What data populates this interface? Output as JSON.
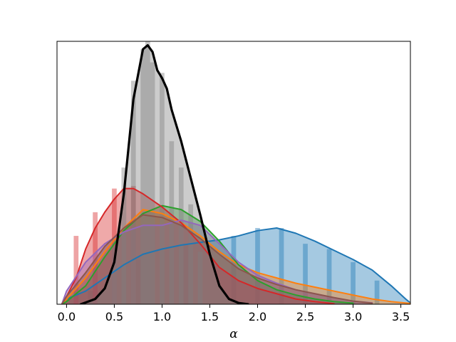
{
  "chart_data": {
    "type": "area",
    "title": "",
    "xlabel": "α",
    "ylabel": "",
    "xlim": [
      -0.1,
      3.6
    ],
    "ylim": [
      0,
      1.0
    ],
    "xticks": [
      "0.0",
      "0.5",
      "1.0",
      "1.5",
      "2.0",
      "2.5",
      "3.0",
      "3.5"
    ],
    "yticks_visible": false,
    "grid": false,
    "legend": "none",
    "series": [
      {
        "color": "#1f77b4",
        "kde": [
          [
            -0.05,
            0.0
          ],
          [
            0.0,
            0.02
          ],
          [
            0.2,
            0.05
          ],
          [
            0.4,
            0.1
          ],
          [
            0.6,
            0.15
          ],
          [
            0.8,
            0.19
          ],
          [
            1.0,
            0.21
          ],
          [
            1.2,
            0.225
          ],
          [
            1.4,
            0.235
          ],
          [
            1.6,
            0.245
          ],
          [
            1.8,
            0.26
          ],
          [
            2.0,
            0.28
          ],
          [
            2.2,
            0.29
          ],
          [
            2.4,
            0.27
          ],
          [
            2.6,
            0.24
          ],
          [
            2.8,
            0.205
          ],
          [
            3.0,
            0.17
          ],
          [
            3.2,
            0.13
          ],
          [
            3.4,
            0.07
          ],
          [
            3.55,
            0.02
          ],
          [
            3.6,
            0.005
          ]
        ],
        "hist": [
          [
            0.25,
            0.05
          ],
          [
            0.75,
            0.17
          ],
          [
            1.25,
            0.23
          ],
          [
            1.75,
            0.26
          ],
          [
            2.0,
            0.29
          ],
          [
            2.25,
            0.29
          ],
          [
            2.5,
            0.23
          ],
          [
            2.75,
            0.21
          ],
          [
            3.0,
            0.16
          ],
          [
            3.25,
            0.09
          ]
        ]
      },
      {
        "color": "#ff7f0e",
        "kde": [
          [
            -0.05,
            0.0
          ],
          [
            0.0,
            0.02
          ],
          [
            0.2,
            0.1
          ],
          [
            0.4,
            0.2
          ],
          [
            0.6,
            0.29
          ],
          [
            0.8,
            0.36
          ],
          [
            1.0,
            0.345
          ],
          [
            1.2,
            0.31
          ],
          [
            1.4,
            0.26
          ],
          [
            1.6,
            0.2
          ],
          [
            1.8,
            0.15
          ],
          [
            2.0,
            0.12
          ],
          [
            2.2,
            0.1
          ],
          [
            2.4,
            0.08
          ],
          [
            2.6,
            0.065
          ],
          [
            2.8,
            0.05
          ],
          [
            3.0,
            0.035
          ],
          [
            3.2,
            0.02
          ],
          [
            3.4,
            0.01
          ],
          [
            3.6,
            0.003
          ]
        ],
        "hist": []
      },
      {
        "color": "#2ca02c",
        "kde": [
          [
            -0.05,
            0.0
          ],
          [
            0.0,
            0.01
          ],
          [
            0.2,
            0.07
          ],
          [
            0.4,
            0.18
          ],
          [
            0.6,
            0.28
          ],
          [
            0.8,
            0.345
          ],
          [
            1.0,
            0.375
          ],
          [
            1.2,
            0.36
          ],
          [
            1.4,
            0.315
          ],
          [
            1.6,
            0.24
          ],
          [
            1.8,
            0.15
          ],
          [
            2.0,
            0.09
          ],
          [
            2.2,
            0.055
          ],
          [
            2.4,
            0.035
          ],
          [
            2.6,
            0.02
          ],
          [
            2.8,
            0.01
          ],
          [
            3.0,
            0.004
          ]
        ],
        "hist": []
      },
      {
        "color": "#d62728",
        "kde": [
          [
            -0.05,
            0.0
          ],
          [
            0.0,
            0.03
          ],
          [
            0.1,
            0.1
          ],
          [
            0.2,
            0.21
          ],
          [
            0.3,
            0.29
          ],
          [
            0.4,
            0.35
          ],
          [
            0.5,
            0.4
          ],
          [
            0.6,
            0.44
          ],
          [
            0.7,
            0.44
          ],
          [
            0.8,
            0.42
          ],
          [
            1.0,
            0.37
          ],
          [
            1.2,
            0.31
          ],
          [
            1.4,
            0.23
          ],
          [
            1.6,
            0.14
          ],
          [
            1.8,
            0.09
          ],
          [
            2.0,
            0.06
          ],
          [
            2.2,
            0.04
          ],
          [
            2.4,
            0.02
          ],
          [
            2.6,
            0.01
          ],
          [
            2.8,
            0.002
          ]
        ],
        "hist": [
          [
            0.1,
            0.26
          ],
          [
            0.3,
            0.35
          ],
          [
            0.5,
            0.44
          ],
          [
            0.7,
            0.45
          ]
        ]
      },
      {
        "color": "#9467bd",
        "kde": [
          [
            -0.05,
            0.0
          ],
          [
            0.0,
            0.05
          ],
          [
            0.2,
            0.16
          ],
          [
            0.4,
            0.23
          ],
          [
            0.6,
            0.275
          ],
          [
            0.8,
            0.3
          ],
          [
            1.0,
            0.3
          ],
          [
            1.2,
            0.32
          ],
          [
            1.4,
            0.3
          ],
          [
            1.6,
            0.23
          ],
          [
            1.8,
            0.16
          ],
          [
            2.0,
            0.11
          ],
          [
            2.2,
            0.08
          ],
          [
            2.4,
            0.055
          ],
          [
            2.6,
            0.04
          ],
          [
            2.8,
            0.025
          ],
          [
            3.0,
            0.012
          ],
          [
            3.2,
            0.005
          ]
        ],
        "hist": []
      },
      {
        "color": "#8c564b",
        "kde": [
          [
            -0.05,
            0.0
          ],
          [
            0.0,
            0.03
          ],
          [
            0.2,
            0.12
          ],
          [
            0.4,
            0.22
          ],
          [
            0.6,
            0.29
          ],
          [
            0.8,
            0.34
          ],
          [
            1.0,
            0.33
          ],
          [
            1.2,
            0.3
          ],
          [
            1.4,
            0.25
          ],
          [
            1.6,
            0.19
          ],
          [
            1.8,
            0.135
          ],
          [
            2.0,
            0.1
          ],
          [
            2.2,
            0.075
          ],
          [
            2.4,
            0.055
          ],
          [
            2.6,
            0.04
          ],
          [
            2.8,
            0.025
          ],
          [
            3.0,
            0.012
          ],
          [
            3.2,
            0.004
          ]
        ],
        "hist": []
      },
      {
        "color": "#000000",
        "fill": "#7f7f7f",
        "linewidth": 3.2,
        "kde": [
          [
            0.15,
            0.0
          ],
          [
            0.3,
            0.02
          ],
          [
            0.4,
            0.06
          ],
          [
            0.5,
            0.16
          ],
          [
            0.6,
            0.42
          ],
          [
            0.7,
            0.78
          ],
          [
            0.8,
            0.97
          ],
          [
            0.85,
            0.985
          ],
          [
            0.9,
            0.96
          ],
          [
            0.95,
            0.89
          ],
          [
            1.0,
            0.86
          ],
          [
            1.05,
            0.82
          ],
          [
            1.1,
            0.74
          ],
          [
            1.2,
            0.62
          ],
          [
            1.3,
            0.48
          ],
          [
            1.4,
            0.34
          ],
          [
            1.5,
            0.19
          ],
          [
            1.6,
            0.07
          ],
          [
            1.7,
            0.02
          ],
          [
            1.8,
            0.005
          ],
          [
            1.9,
            0.0
          ]
        ],
        "hist": [
          [
            0.5,
            0.22
          ],
          [
            0.6,
            0.52
          ],
          [
            0.7,
            0.85
          ],
          [
            0.8,
            0.97
          ],
          [
            0.85,
            1.0
          ],
          [
            0.9,
            0.92
          ],
          [
            1.0,
            0.88
          ],
          [
            1.1,
            0.62
          ],
          [
            1.2,
            0.52
          ],
          [
            1.3,
            0.38
          ],
          [
            1.4,
            0.2
          ]
        ]
      }
    ]
  }
}
